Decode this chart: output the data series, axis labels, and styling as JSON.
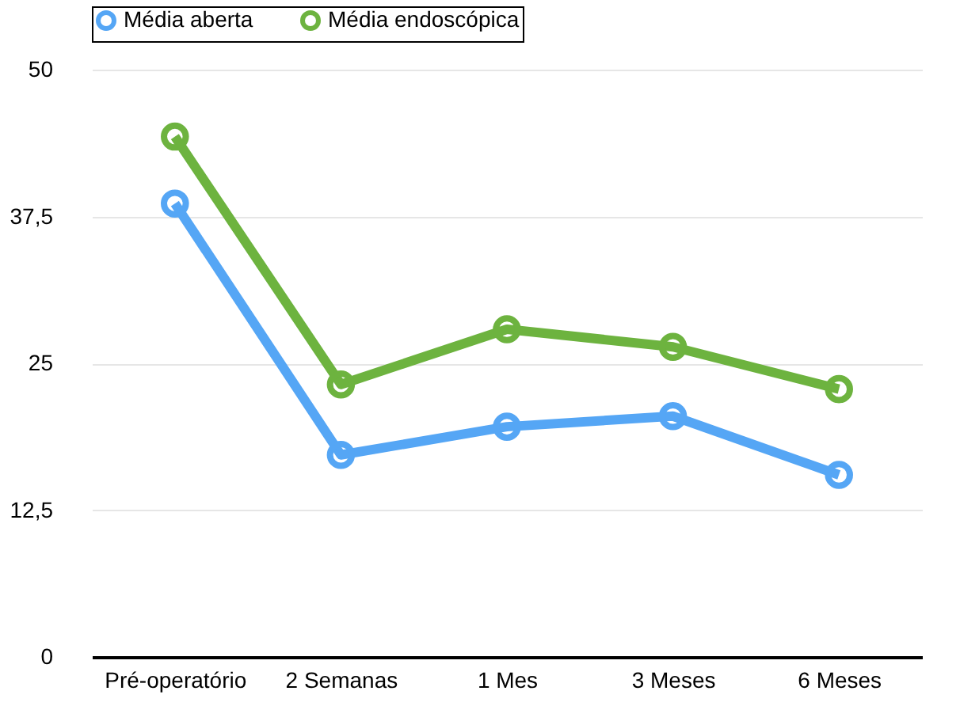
{
  "chart_data": {
    "type": "line",
    "categories": [
      "Pré-operatório",
      "2 Semanas",
      "1 Mes",
      "3 Meses",
      "6 Meses"
    ],
    "series": [
      {
        "name": "Média aberta",
        "color": "#55a6f5",
        "values": [
          38.6,
          17.2,
          19.6,
          20.5,
          15.5
        ]
      },
      {
        "name": "Média endoscópica",
        "color": "#6db33f",
        "values": [
          44.3,
          23.2,
          27.9,
          26.4,
          22.8
        ]
      }
    ],
    "ylim": [
      0,
      50
    ],
    "yticks": [
      0,
      {
        "value": 12.5,
        "label": "12,5"
      },
      25,
      {
        "value": 37.5,
        "label": "37,5"
      },
      50
    ],
    "grid": "y",
    "legend": "top",
    "marker": "circle",
    "line_style": "solid"
  }
}
